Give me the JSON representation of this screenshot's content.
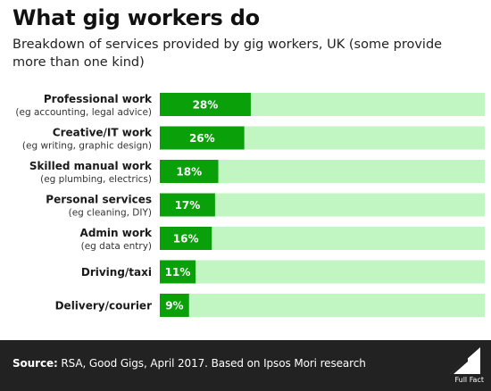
{
  "title": "What gig workers do",
  "subtitle": "Breakdown of services provided by gig workers, UK (some provide more than one kind)",
  "chart_data": {
    "type": "bar",
    "orientation": "horizontal",
    "categories": [
      {
        "label": "Professional work",
        "sublabel": "(eg accounting, legal advice)"
      },
      {
        "label": "Creative/IT work",
        "sublabel": "(eg writing, graphic design)"
      },
      {
        "label": "Skilled manual work",
        "sublabel": "(eg plumbing, electrics)"
      },
      {
        "label": "Personal services",
        "sublabel": "(eg cleaning, DIY)"
      },
      {
        "label": "Admin work",
        "sublabel": "(eg data entry)"
      },
      {
        "label": "Driving/taxi",
        "sublabel": ""
      },
      {
        "label": "Delivery/courier",
        "sublabel": ""
      }
    ],
    "values": [
      28,
      26,
      18,
      17,
      16,
      11,
      9
    ],
    "value_labels": [
      "28%",
      "26%",
      "18%",
      "17%",
      "16%",
      "11%",
      "9%"
    ],
    "xlim": [
      0,
      100
    ],
    "colors": {
      "bar": "#0aa00a",
      "track": "#c1f5c1",
      "label_text": "#ffffff"
    },
    "grid": false,
    "legend": "none"
  },
  "footer": {
    "source_prefix": "Source:",
    "source_text": " RSA, Good Gigs, April 2017. Based on Ipsos Mori research",
    "logo_text": "Full Fact",
    "logo_icon": "full-fact-logo-icon"
  }
}
